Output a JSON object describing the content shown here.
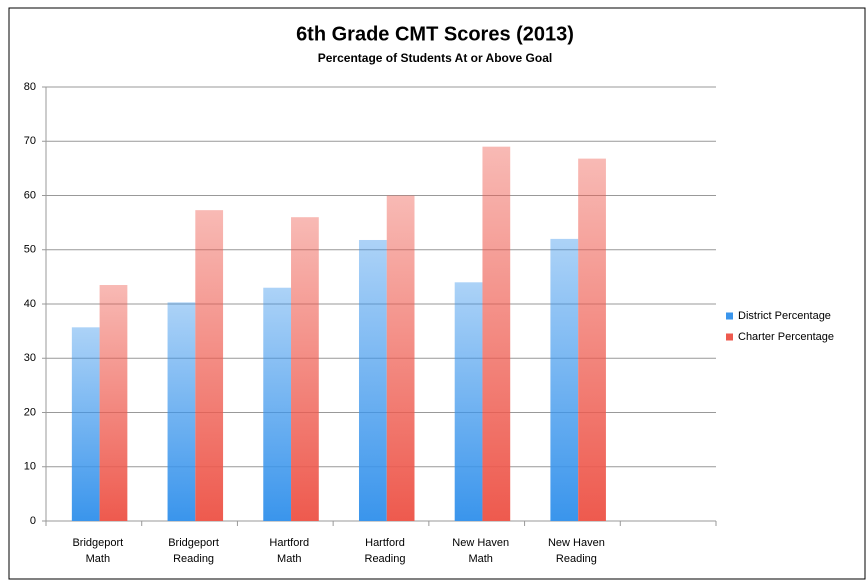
{
  "chart_data": {
    "type": "bar",
    "title": "6th Grade CMT Scores (2013)",
    "subtitle": "Percentage of Students At or Above Goal",
    "categories": [
      [
        "Bridgeport",
        "Math"
      ],
      [
        "Bridgeport",
        "Reading"
      ],
      [
        "Hartford",
        "Math"
      ],
      [
        "Hartford",
        "Reading"
      ],
      [
        "New Haven",
        "Math"
      ],
      [
        "New Haven",
        "Reading"
      ],
      null
    ],
    "series": [
      {
        "name": "District Percentage",
        "color": "#3a95ec",
        "values": [
          35.7,
          40.3,
          43,
          51.8,
          44,
          52,
          null
        ]
      },
      {
        "name": "Charter Percentage",
        "color": "#ee5a4e",
        "values": [
          43.5,
          57.3,
          56,
          60,
          69,
          66.8,
          null
        ]
      }
    ],
    "ylim": [
      0,
      80
    ],
    "yticks": [
      0,
      10,
      20,
      30,
      40,
      50,
      60,
      70,
      80
    ],
    "grid": true,
    "legend": "right"
  }
}
